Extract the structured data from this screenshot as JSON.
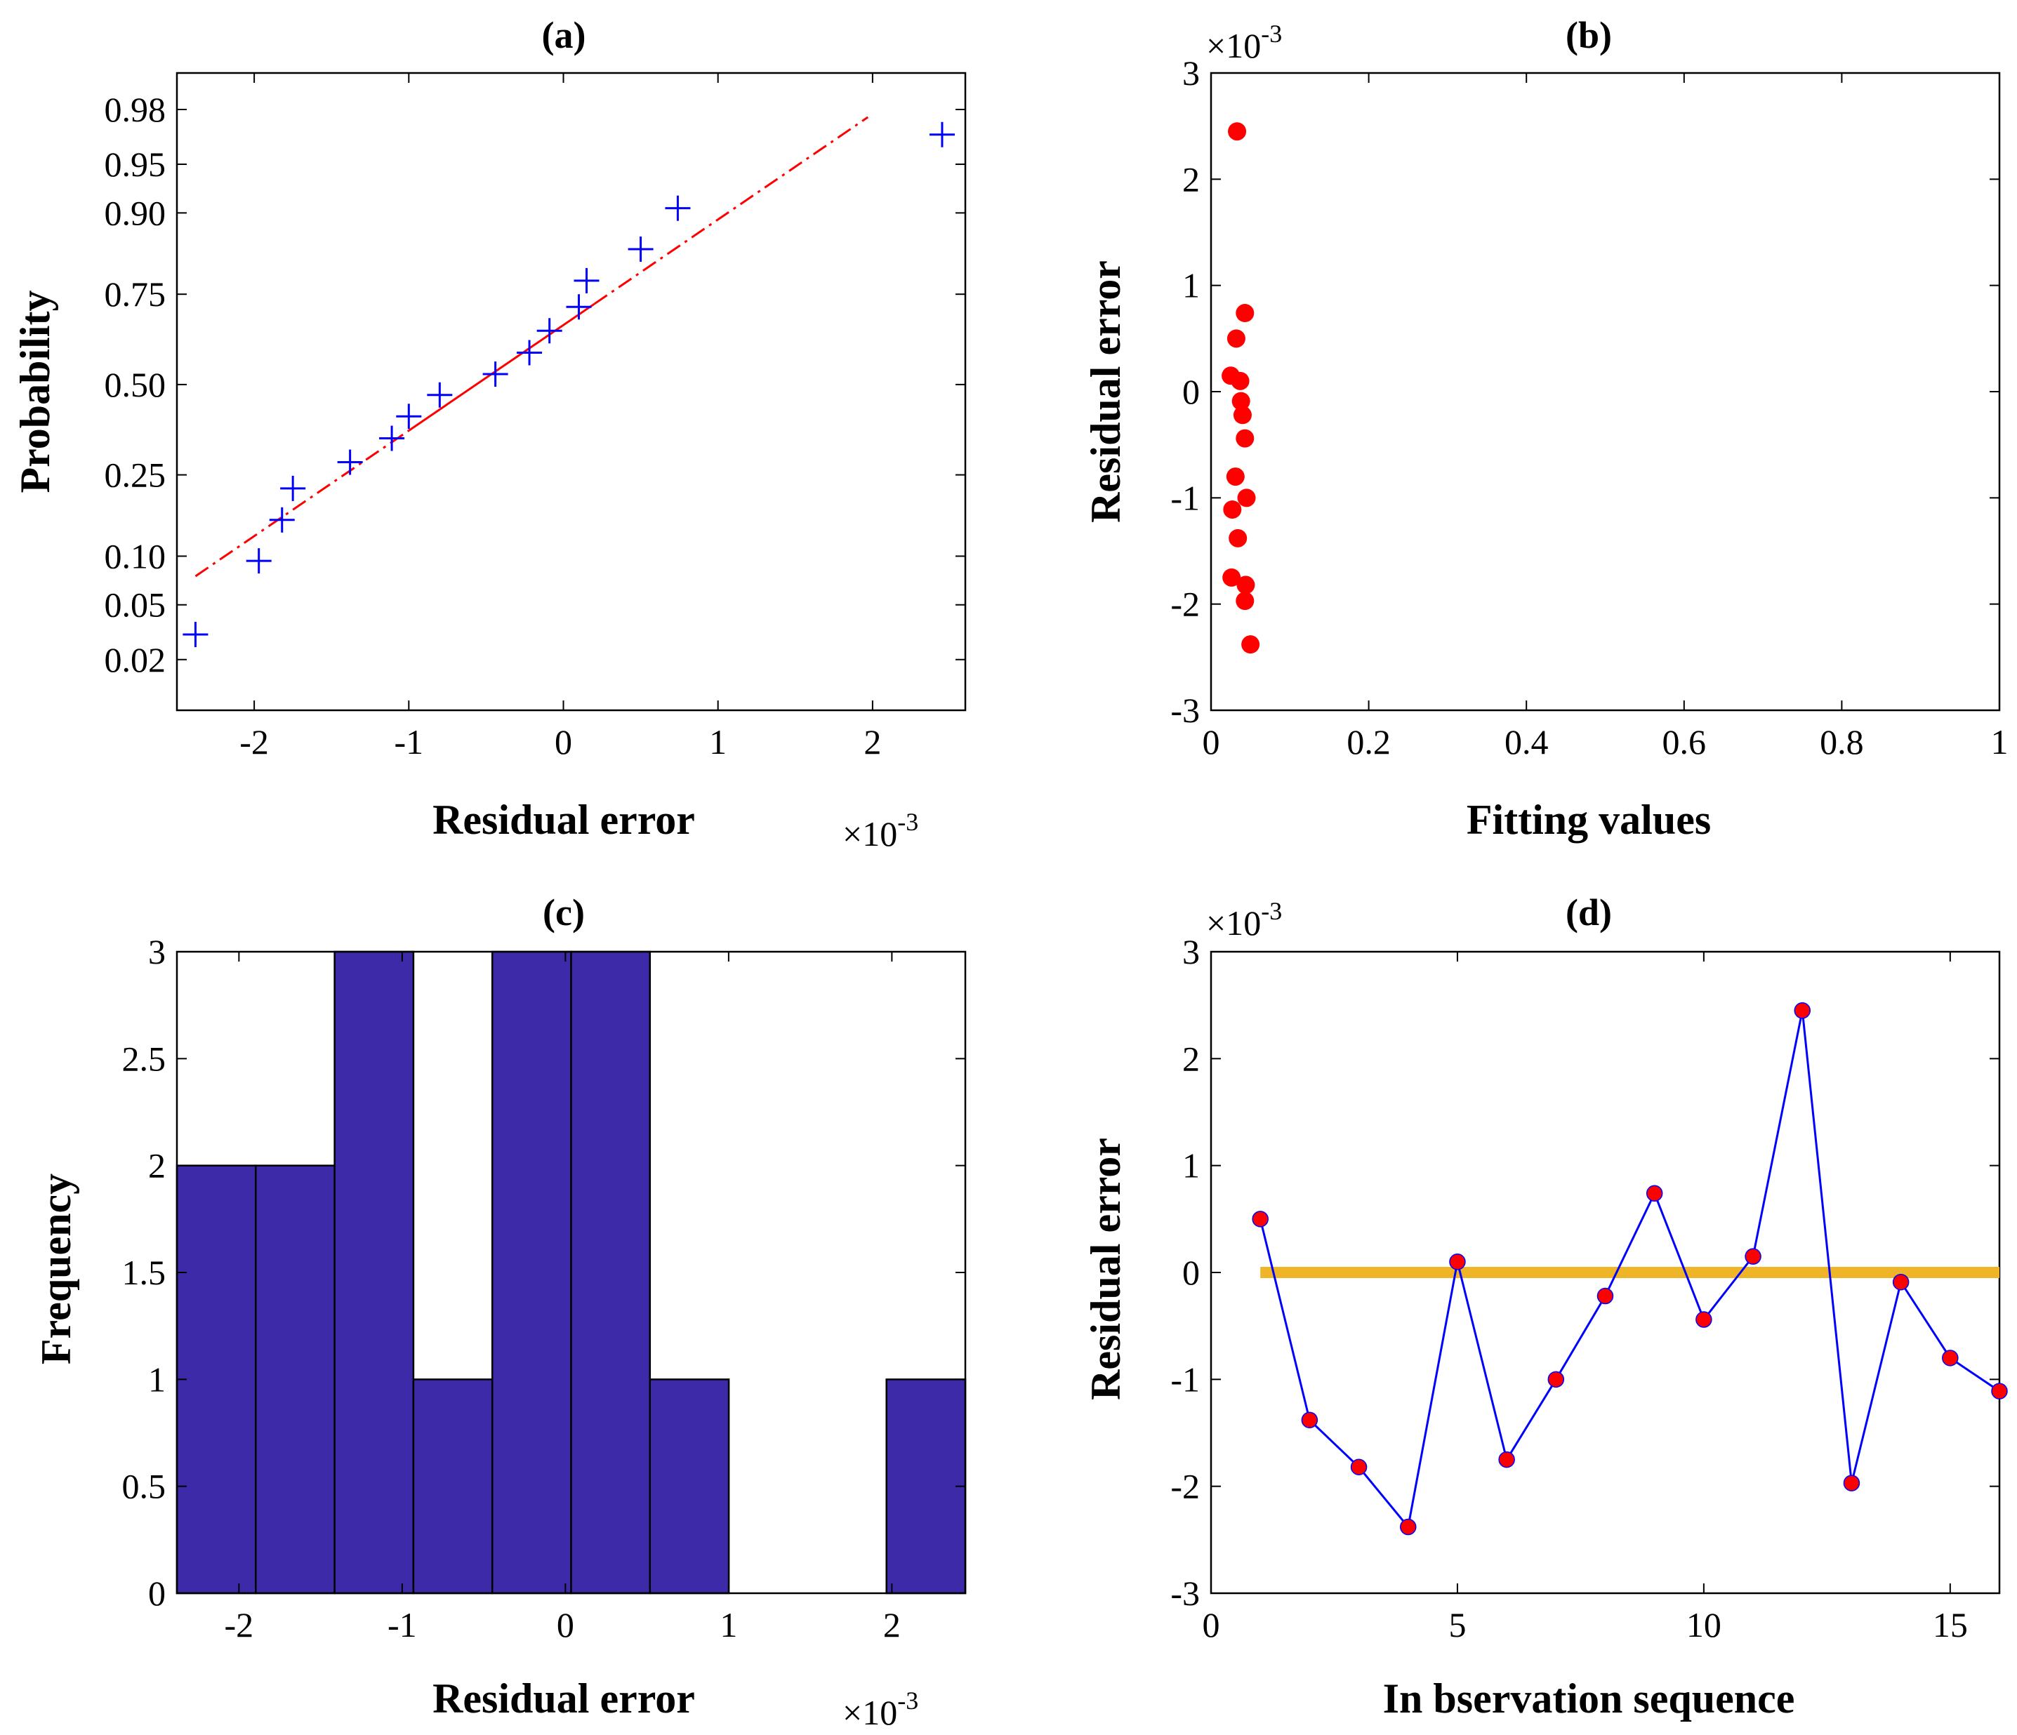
{
  "chart_data": [
    {
      "id": "a",
      "type": "scatter",
      "title": "(a)",
      "xlabel": "Residual error",
      "ylabel": "Probability",
      "x_multiplier": "×10",
      "x_multiplier_exp": "-3",
      "xlim": [
        -2.5,
        2.6
      ],
      "xticks": [
        -2,
        -1,
        0,
        1,
        2
      ],
      "xtick_labels": [
        "-2",
        "-1",
        "0",
        "1",
        "2"
      ],
      "ylim": [
        0.0075,
        0.99
      ],
      "yticks": [
        0.02,
        0.05,
        0.1,
        0.25,
        0.5,
        0.75,
        0.9,
        0.95,
        0.98
      ],
      "ytick_labels": [
        "0.02",
        "0.05",
        "0.10",
        "0.25",
        "0.50",
        "0.75",
        "0.90",
        "0.95",
        "0.98"
      ],
      "yscale": "normal-probability",
      "marker": "+",
      "marker_color": "#0000ff",
      "line_color": "#ff0000",
      "points": {
        "x": [
          -2.38,
          -1.97,
          -1.82,
          -1.75,
          -1.38,
          -1.11,
          -1.0,
          -0.8,
          -0.44,
          -0.22,
          -0.09,
          0.1,
          0.15,
          0.5,
          0.74,
          2.45
        ],
        "y": [
          0.031,
          0.094,
          0.156,
          0.219,
          0.281,
          0.344,
          0.406,
          0.469,
          0.531,
          0.594,
          0.656,
          0.719,
          0.781,
          0.844,
          0.906,
          0.969
        ]
      },
      "ref_line": {
        "x0": -2.38,
        "x1": 1.97,
        "solid_from": -1.0,
        "solid_to": 0.2
      }
    },
    {
      "id": "b",
      "type": "scatter",
      "title": "(b)",
      "xlabel": "Fitting values",
      "ylabel": "Residual error",
      "y_multiplier": "×10",
      "y_multiplier_exp": "-3",
      "xlim": [
        0,
        1
      ],
      "xticks": [
        0,
        0.2,
        0.4,
        0.6,
        0.8,
        1
      ],
      "xtick_labels": [
        "0",
        "0.2",
        "0.4",
        "0.6",
        "0.8",
        "1"
      ],
      "ylim": [
        -3,
        3
      ],
      "yticks": [
        -3,
        -2,
        -1,
        0,
        1,
        2,
        3
      ],
      "ytick_labels": [
        "-3",
        "-2",
        "-1",
        "0",
        "1",
        "2",
        "3"
      ],
      "marker_color": "#ff0000",
      "points": {
        "x": [
          0.033,
          0.043,
          0.032,
          0.025,
          0.037,
          0.038,
          0.04,
          0.043,
          0.031,
          0.045,
          0.027,
          0.034,
          0.026,
          0.044,
          0.043,
          0.05
        ],
        "y": [
          2.45,
          0.74,
          0.5,
          0.15,
          0.1,
          -0.09,
          -0.22,
          -0.44,
          -0.8,
          -1.0,
          -1.11,
          -1.38,
          -1.75,
          -1.82,
          -1.97,
          -2.38
        ]
      }
    },
    {
      "id": "c",
      "type": "bar",
      "title": "(c)",
      "xlabel": "Residual error",
      "ylabel": "Frequency",
      "x_multiplier": "×10",
      "x_multiplier_exp": "-3",
      "xlim": [
        -2.38,
        2.45
      ],
      "xticks": [
        -2,
        -1,
        0,
        1,
        2
      ],
      "xtick_labels": [
        "-2",
        "-1",
        "0",
        "1",
        "2"
      ],
      "ylim": [
        0,
        3
      ],
      "yticks": [
        0,
        0.5,
        1,
        1.5,
        2,
        2.5,
        3
      ],
      "ytick_labels": [
        "0",
        "0.5",
        "1",
        "1.5",
        "2",
        "2.5",
        "3"
      ],
      "bar_color": "#3d2aa8",
      "bin_edges": [
        -2.38,
        -1.897,
        -1.414,
        -0.931,
        -0.448,
        0.035,
        0.518,
        1.001,
        1.484,
        1.967,
        2.45
      ],
      "counts": [
        2,
        2,
        3,
        1,
        3,
        3,
        1,
        0,
        0,
        1
      ]
    },
    {
      "id": "d",
      "type": "line",
      "title": "(d)",
      "xlabel": "In bservation sequence",
      "ylabel": "Residual error",
      "y_multiplier": "×10",
      "y_multiplier_exp": "-3",
      "xlim": [
        0,
        16
      ],
      "xticks": [
        0,
        5,
        10,
        15
      ],
      "xtick_labels": [
        "0",
        "5",
        "10",
        "15"
      ],
      "ylim": [
        -3,
        3
      ],
      "yticks": [
        -3,
        -2,
        -1,
        0,
        1,
        2,
        3
      ],
      "ytick_labels": [
        "-3",
        "-2",
        "-1",
        "0",
        "1",
        "2",
        "3"
      ],
      "line_color": "#0000ff",
      "marker_color": "#ff0000",
      "zero_line_color": "#f0b429",
      "zero_line": {
        "x0": 1,
        "x1": 16,
        "y": 0
      },
      "x": [
        1,
        2,
        3,
        4,
        5,
        6,
        7,
        8,
        9,
        10,
        11,
        12,
        13,
        14,
        15,
        16
      ],
      "y": [
        0.5,
        -1.38,
        -1.82,
        -2.38,
        0.1,
        -1.75,
        -1.0,
        -0.22,
        0.74,
        -0.44,
        0.15,
        2.45,
        -1.97,
        -0.09,
        -0.8,
        -1.11
      ]
    }
  ]
}
